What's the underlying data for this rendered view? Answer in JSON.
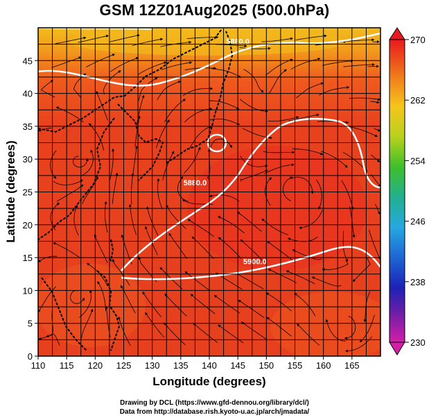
{
  "title": "GSM 12Z01Aug2025 (500.0hPa)",
  "map": {
    "xlabel": "Longitude (degrees)",
    "ylabel": "Latitude  (degrees)",
    "lon_range": [
      110,
      170
    ],
    "lat_range": [
      0,
      50
    ],
    "lon_ticks": [
      110,
      115,
      120,
      125,
      130,
      135,
      140,
      145,
      150,
      155,
      160,
      165
    ],
    "lat_ticks": [
      0,
      5,
      10,
      15,
      20,
      25,
      30,
      35,
      40,
      45
    ],
    "lon_tick_labels": [
      "110",
      "115",
      "120",
      "125",
      "130",
      "135",
      "140",
      "145",
      "150",
      "155",
      "160",
      "165"
    ],
    "lat_tick_labels": [
      "0",
      "5",
      "10",
      "15",
      "20",
      "25",
      "30",
      "35",
      "40",
      "45"
    ],
    "grid": true,
    "field": "temperature shading with streamlines",
    "contour_labels": [
      {
        "text": "5880.0",
        "lon": 145,
        "lat": 47.5
      },
      {
        "text": "5880.0",
        "lon": 137.5,
        "lat": 26
      },
      {
        "text": "5900.0",
        "lon": 148,
        "lat": 14
      }
    ]
  },
  "colorbar": {
    "min": 230,
    "max": 270,
    "tick_labels": [
      "270",
      "262",
      "254",
      "246",
      "238",
      "230"
    ]
  },
  "credits": {
    "line1": "Drawing by DCL (https://www.gfd-dennou.org/library/dcl/)",
    "line2": "Data from http://database.rish.kyoto-u.ac.jp/arch/jmadata/"
  },
  "colors": {
    "warm_red": "#e8391e",
    "mid_orange": "#f36a1d",
    "north_yellow": "#f2b41b",
    "contour": "#ffffff"
  }
}
